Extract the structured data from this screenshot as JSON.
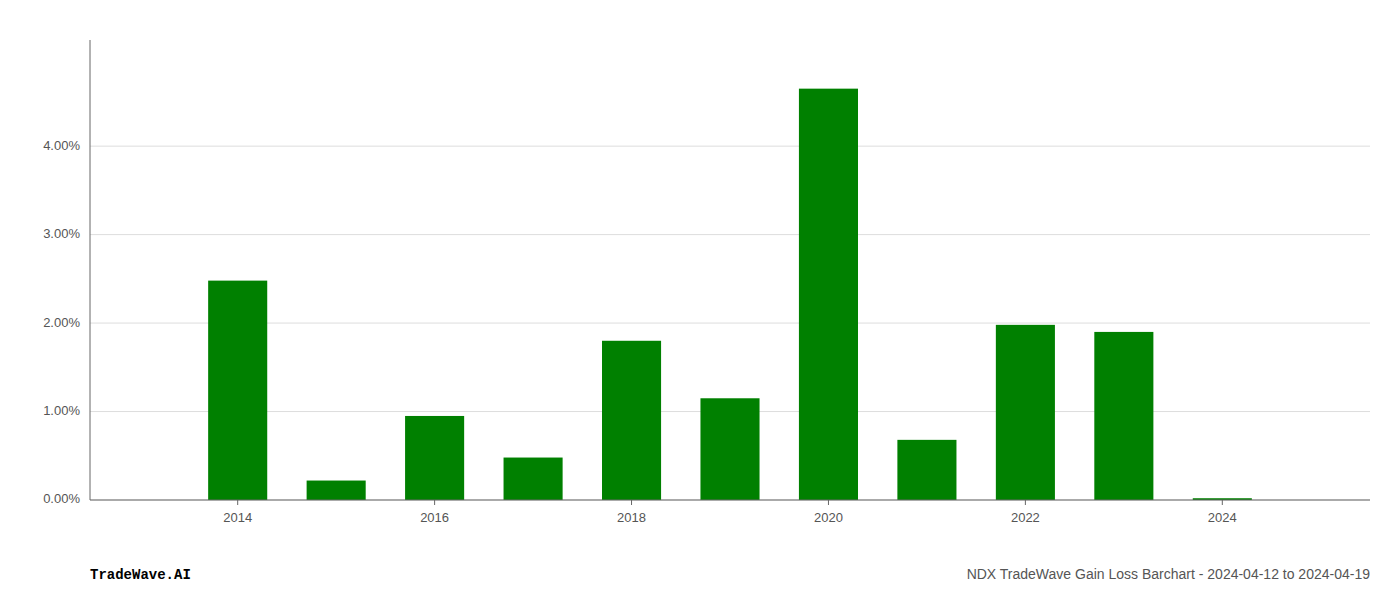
{
  "chart_data": {
    "type": "bar",
    "title": "NDX TradeWave Gain Loss Barchart - 2024-04-12 to 2024-04-19",
    "annotations": [
      "TradeWave.AI"
    ],
    "x": [
      2014,
      2015,
      2016,
      2017,
      2018,
      2019,
      2020,
      2021,
      2022,
      2023,
      2024
    ],
    "values": [
      0.0248,
      0.0022,
      0.0095,
      0.0048,
      0.018,
      0.0115,
      0.0465,
      0.0068,
      0.0198,
      0.019,
      0.0002
    ],
    "color": "#008000",
    "xlim": [
      2012.5,
      2025.5
    ],
    "xticks": [
      2014,
      2016,
      2018,
      2020,
      2022,
      2024
    ],
    "ylim": [
      0,
      0.052
    ],
    "yticks": [
      {
        "value": 0.0,
        "label": "0.00%"
      },
      {
        "value": 0.01,
        "label": "1.00%"
      },
      {
        "value": 0.02,
        "label": "2.00%"
      },
      {
        "value": 0.03,
        "label": "3.00%"
      },
      {
        "value": 0.04,
        "label": "4.00%"
      }
    ],
    "grid": true
  }
}
